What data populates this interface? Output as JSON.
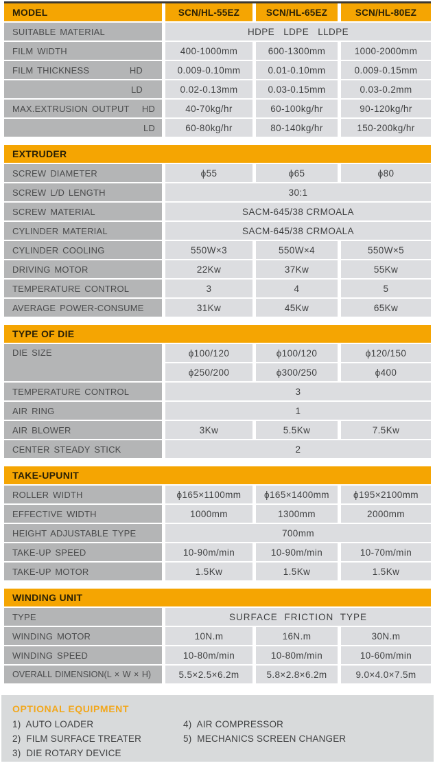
{
  "page": {
    "accent_orange": "#f5a502",
    "label_gray": "#b4b5b6",
    "value_gray": "#dcdde0",
    "panel_gray": "#d8dadb"
  },
  "model_table": {
    "header": {
      "label": "MODEL",
      "columns": [
        "SCN/HL-55EZ",
        "SCN/HL-65EZ",
        "SCN/HL-80EZ"
      ]
    },
    "rows": {
      "suitable_material": {
        "label": "SUITABLE MATERIAL",
        "span": "HDPE LDPE LLDPE"
      },
      "film_width": {
        "label": "FILM WIDTH",
        "values": [
          "400-1000mm",
          "600-1300mm",
          "1000-2000mm"
        ]
      },
      "film_thickness_hd": {
        "label": "FILM THICKNESS",
        "sub": "HD",
        "values": [
          "0.009-0.10mm",
          "0.01-0.10mm",
          "0.009-0.15mm"
        ]
      },
      "film_thickness_ld": {
        "label": "",
        "sub": "LD",
        "values": [
          "0.02-0.13mm",
          "0.03-0.15mm",
          "0.03-0.2mm"
        ]
      },
      "max_output_hd": {
        "label": "MAX.EXTRUSION OUTPUT",
        "sub": "HD",
        "values": [
          "40-70kg/hr",
          "60-100kg/hr",
          "90-120kg/hr"
        ]
      },
      "max_output_ld": {
        "label": "",
        "sub": "LD",
        "values": [
          "60-80kg/hr",
          "80-140kg/hr",
          "150-200kg/hr"
        ]
      }
    }
  },
  "extruder": {
    "title": "EXTRUDER",
    "rows": {
      "screw_diameter": {
        "label": "SCREW DIAMETER",
        "values": [
          "ϕ55",
          "ϕ65",
          "ϕ80"
        ]
      },
      "screw_ld_length": {
        "label": "SCREW L/D LENGTH",
        "span": "30:1"
      },
      "screw_material": {
        "label": "SCREW MATERIAL",
        "span": "SACM-645/38 CRMOALA"
      },
      "cylinder_material": {
        "label": "CYLINDER MATERIAL",
        "span": "SACM-645/38 CRMOALA"
      },
      "cylinder_cooling": {
        "label": "CYLINDER COOLING",
        "values": [
          "550W×3",
          "550W×4",
          "550W×5"
        ]
      },
      "driving_motor": {
        "label": "DRIVING MOTOR",
        "values": [
          "22Kw",
          "37Kw",
          "55Kw"
        ]
      },
      "temperature_control": {
        "label": "TEMPERATURE CONTROL",
        "values": [
          "3",
          "4",
          "5"
        ]
      },
      "average_power_consume": {
        "label": "AVERAGE POWER-CONSUME",
        "values": [
          "31Kw",
          "45Kw",
          "65Kw"
        ]
      }
    }
  },
  "type_of_die": {
    "title": "TYPE OF DIE",
    "rows": {
      "die_size": {
        "label": "DIE SIZE",
        "values_row1": [
          "ϕ100/120",
          "ϕ100/120",
          "ϕ120/150"
        ],
        "values_row2": [
          "ϕ250/200",
          "ϕ300/250",
          "ϕ400"
        ]
      },
      "temperature_control": {
        "label": "TEMPERATURE CONTROL",
        "span": "3"
      },
      "air_ring": {
        "label": "AIR RING",
        "span": "1"
      },
      "air_blower": {
        "label": "AIR BLOWER",
        "values": [
          "3Kw",
          "5.5Kw",
          "7.5Kw"
        ]
      },
      "center_steady_stick": {
        "label": "CENTER STEADY STICK",
        "span": "2"
      }
    }
  },
  "take_up_unit": {
    "title": "TAKE-UPUNIT",
    "rows": {
      "roller_width": {
        "label": "ROLLER WIDTH",
        "values": [
          "ϕ165×1100mm",
          "ϕ165×1400mm",
          "ϕ195×2100mm"
        ]
      },
      "effective_width": {
        "label": "EFFECTIVE WIDTH",
        "values": [
          "1000mm",
          "1300mm",
          "2000mm"
        ]
      },
      "height_adjustable_type": {
        "label": "HEIGHT ADJUSTABLE TYPE",
        "span": "700mm"
      },
      "take_up_speed": {
        "label": "TAKE-UP SPEED",
        "values": [
          "10-90m/min",
          "10-90m/min",
          "10-70m/min"
        ]
      },
      "take_up_motor": {
        "label": "TAKE-UP MOTOR",
        "values": [
          "1.5Kw",
          "1.5Kw",
          "1.5Kw"
        ]
      }
    }
  },
  "winding_unit": {
    "title": "WINDING UNIT",
    "rows": {
      "type": {
        "label": "TYPE",
        "span": "SURFACE FRICTION TYPE"
      },
      "winding_motor": {
        "label": "WINDING MOTOR",
        "values": [
          "10N.m",
          "16N.m",
          "30N.m"
        ]
      },
      "winding_speed": {
        "label": "WINDING SPEED",
        "values": [
          "10-80m/min",
          "10-80m/min",
          "10-60m/min"
        ]
      },
      "overall_dimension": {
        "label": "OVERALL DIMENSION(L × W × H)",
        "values": [
          "5.5×2.5×6.2m",
          "5.8×2.8×6.2m",
          "9.0×4.0×7.5m"
        ]
      }
    }
  },
  "optional": {
    "title": "OPTIONAL EQUIPMENT",
    "left_items": [
      "1)  AUTO LOADER",
      "2)  FILM SURFACE TREATER",
      "3)  DIE ROTARY DEVICE"
    ],
    "right_items": [
      "4)  AIR COMPRESSOR",
      "5)  MECHANICS SCREEN CHANGER"
    ]
  }
}
